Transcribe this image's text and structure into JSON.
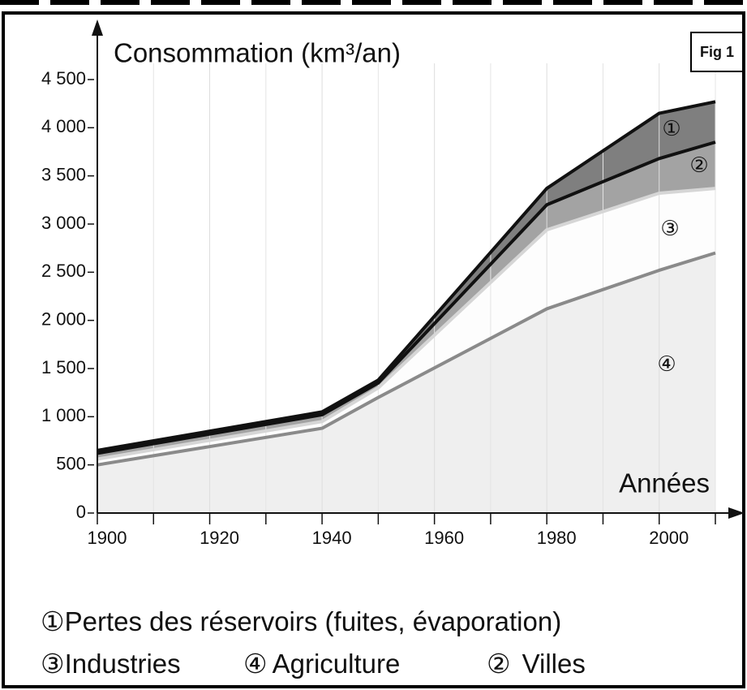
{
  "chart_data": {
    "type": "stacked_area",
    "figure_label": "Fig 1",
    "y_label": "Consommation (km³/an)",
    "x_label": "Années",
    "x": [
      1900,
      1940,
      1950,
      1980,
      2000,
      2010
    ],
    "series": [
      {
        "name": "Agriculture",
        "marker": "④",
        "color": "#efefef",
        "line_color": "#8a8a8a",
        "values": [
          500,
          880,
          1200,
          2120,
          2520,
          2700
        ]
      },
      {
        "name": "Industries",
        "marker": "③",
        "color": "#fdfdfd",
        "line_color": "#d6d6d6",
        "values": [
          60,
          70,
          100,
          820,
          800,
          670
        ]
      },
      {
        "name": "Villes",
        "marker": "②",
        "color": "#a3a3a3",
        "line_color": "#111111",
        "values": [
          60,
          70,
          50,
          260,
          360,
          480
        ]
      },
      {
        "name": "Pertes des réservoirs (fuites, évaporation)",
        "marker": "①",
        "color": "#7f7f7f",
        "line_color": "#111111",
        "values": [
          30,
          30,
          30,
          170,
          470,
          420
        ]
      }
    ],
    "xlim": [
      1900,
      2010
    ],
    "xticks": [
      1900,
      1920,
      1940,
      1960,
      1980,
      2000
    ],
    "minor_xticks": [
      1910,
      1930,
      1950,
      1970,
      1990,
      2010
    ],
    "ylim": [
      0,
      4500
    ],
    "yticks": [
      0,
      500,
      {
        "value": 1000,
        "label": "1 000"
      },
      {
        "value": 1500,
        "label": "1 500"
      },
      {
        "value": 2000,
        "label": "2 000"
      },
      {
        "value": 2500,
        "label": "2 500"
      },
      {
        "value": 3000,
        "label": "3 000"
      },
      {
        "value": 3500,
        "label": "3 500"
      },
      {
        "value": 4000,
        "label": "4 000"
      },
      {
        "value": 4500,
        "label": "4 500"
      }
    ],
    "grid": true
  }
}
